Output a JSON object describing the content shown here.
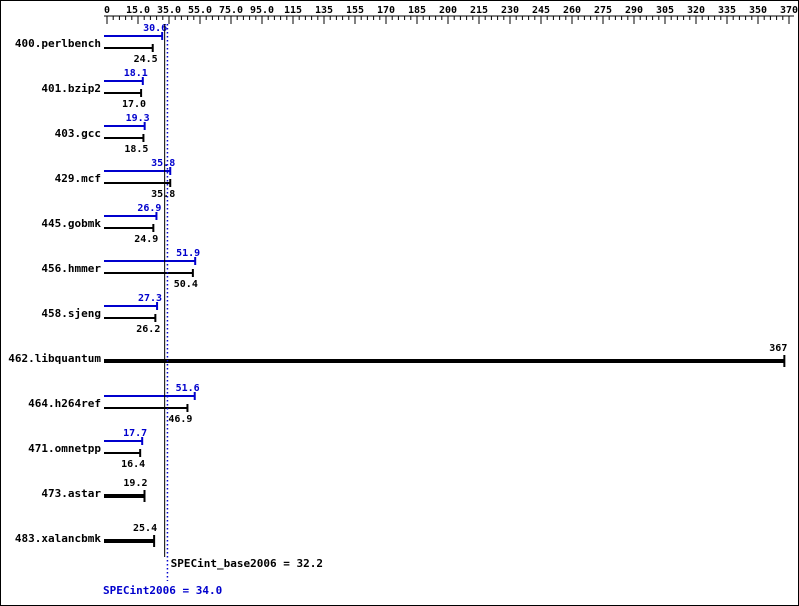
{
  "chart_data": {
    "type": "bar",
    "orientation": "horizontal",
    "title": "",
    "axis": {
      "position": "top",
      "minor_per_interval": 4,
      "ticks": [
        {
          "value": 0,
          "label": "0"
        },
        {
          "value": 15,
          "label": "15.0"
        },
        {
          "value": 35,
          "label": "35.0"
        },
        {
          "value": 55,
          "label": "55.0"
        },
        {
          "value": 75,
          "label": "75.0"
        },
        {
          "value": 95,
          "label": "95.0"
        },
        {
          "value": 115,
          "label": "115"
        },
        {
          "value": 135,
          "label": "135"
        },
        {
          "value": 155,
          "label": "155"
        },
        {
          "value": 170,
          "label": "170"
        },
        {
          "value": 185,
          "label": "185"
        },
        {
          "value": 200,
          "label": "200"
        },
        {
          "value": 215,
          "label": "215"
        },
        {
          "value": 230,
          "label": "230"
        },
        {
          "value": 245,
          "label": "245"
        },
        {
          "value": 260,
          "label": "260"
        },
        {
          "value": 275,
          "label": "275"
        },
        {
          "value": 290,
          "label": "290"
        },
        {
          "value": 305,
          "label": "305"
        },
        {
          "value": 320,
          "label": "320"
        },
        {
          "value": 335,
          "label": "335"
        },
        {
          "value": 350,
          "label": "350"
        },
        {
          "value": 370,
          "label": "370"
        }
      ]
    },
    "series_colors": {
      "peak": "#0000cd",
      "base": "#000000"
    },
    "benchmarks": [
      {
        "name": "400.perlbench",
        "peak": 30.6,
        "peak_label": "30.6",
        "base": 24.5,
        "base_label": "24.5"
      },
      {
        "name": "401.bzip2",
        "peak": 18.1,
        "peak_label": "18.1",
        "base": 17.0,
        "base_label": "17.0"
      },
      {
        "name": "403.gcc",
        "peak": 19.3,
        "peak_label": "19.3",
        "base": 18.5,
        "base_label": "18.5"
      },
      {
        "name": "429.mcf",
        "peak": 35.8,
        "peak_label": "35.8",
        "base": 35.8,
        "base_label": "35.8"
      },
      {
        "name": "445.gobmk",
        "peak": 26.9,
        "peak_label": "26.9",
        "base": 24.9,
        "base_label": "24.9"
      },
      {
        "name": "456.hmmer",
        "peak": 51.9,
        "peak_label": "51.9",
        "base": 50.4,
        "base_label": "50.4"
      },
      {
        "name": "458.sjeng",
        "peak": 27.3,
        "peak_label": "27.3",
        "base": 26.2,
        "base_label": "26.2"
      },
      {
        "name": "462.libquantum",
        "single": 367,
        "single_label": "367"
      },
      {
        "name": "464.h264ref",
        "peak": 51.6,
        "peak_label": "51.6",
        "base": 46.9,
        "base_label": "46.9"
      },
      {
        "name": "471.omnetpp",
        "peak": 17.7,
        "peak_label": "17.7",
        "base": 16.4,
        "base_label": "16.4"
      },
      {
        "name": "473.astar",
        "single": 19.2,
        "single_label": "19.2"
      },
      {
        "name": "483.xalancbmk",
        "single": 25.4,
        "single_label": "25.4"
      }
    ],
    "reference_lines": [
      {
        "id": "base-mean",
        "value": 32.2,
        "label": "SPECint_base2006 = 32.2",
        "color": "#000000",
        "style": "solid"
      },
      {
        "id": "peak-mean",
        "value": 34.0,
        "label": "SPECint2006 = 34.0",
        "color": "#0000cd",
        "style": "dotted"
      }
    ]
  }
}
